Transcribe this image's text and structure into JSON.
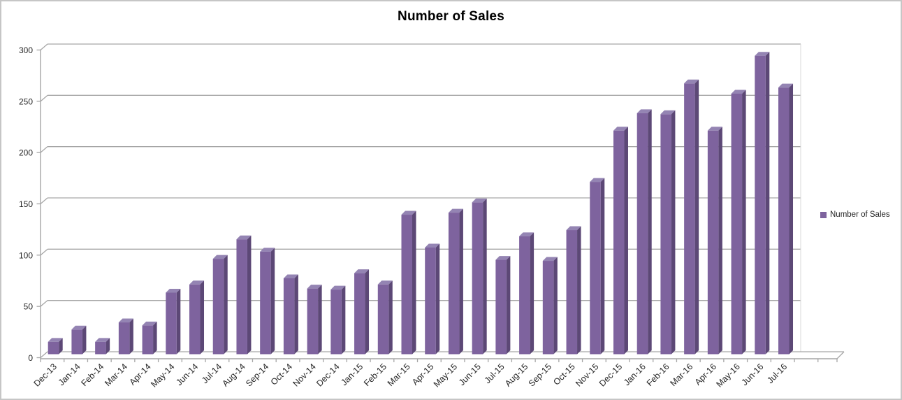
{
  "chart_data": {
    "type": "bar",
    "style": "3d-column",
    "title": "Number of Sales",
    "xlabel": "",
    "ylabel": "",
    "categories": [
      "Dec-13",
      "Jan-14",
      "Feb-14",
      "Mar-14",
      "Apr-14",
      "May-14",
      "Jun-14",
      "Jul-14",
      "Aug-14",
      "Sep-14",
      "Oct-14",
      "Nov-14",
      "Dec-14",
      "Jan-15",
      "Feb-15",
      "Mar-15",
      "Apr-15",
      "May-15",
      "Jun-15",
      "Jul-15",
      "Aug-15",
      "Sep-15",
      "Oct-15",
      "Nov-15",
      "Dec-15",
      "Jan-16",
      "Feb-16",
      "Mar-16",
      "Apr-16",
      "May-16",
      "Jun-16",
      "Jul-16"
    ],
    "series": [
      {
        "name": "Number of Sales",
        "values": [
          12,
          24,
          12,
          31,
          28,
          60,
          68,
          93,
          112,
          100,
          74,
          64,
          63,
          79,
          68,
          136,
          104,
          138,
          148,
          92,
          115,
          91,
          121,
          168,
          218,
          235,
          234,
          264,
          218,
          254,
          291,
          260
        ]
      }
    ],
    "ylim": [
      0,
      300
    ],
    "yticks": [
      0,
      50,
      100,
      150,
      200,
      250,
      300
    ],
    "grid": true,
    "legend_position": "right",
    "colors": {
      "bar_front": "#7E639E",
      "bar_side": "#5C4876",
      "bar_top": "#9484B3",
      "gridline": "#A6A6A6",
      "axis_line": "#A6A6A6",
      "wall_edge": "#D9D9D9",
      "tick_label": "#262626",
      "title": "#000000",
      "background": "#FFFFFF",
      "border": "#C6C6C6"
    }
  },
  "legend": {
    "label": "Number of Sales",
    "marker_color": "#7E639E"
  }
}
